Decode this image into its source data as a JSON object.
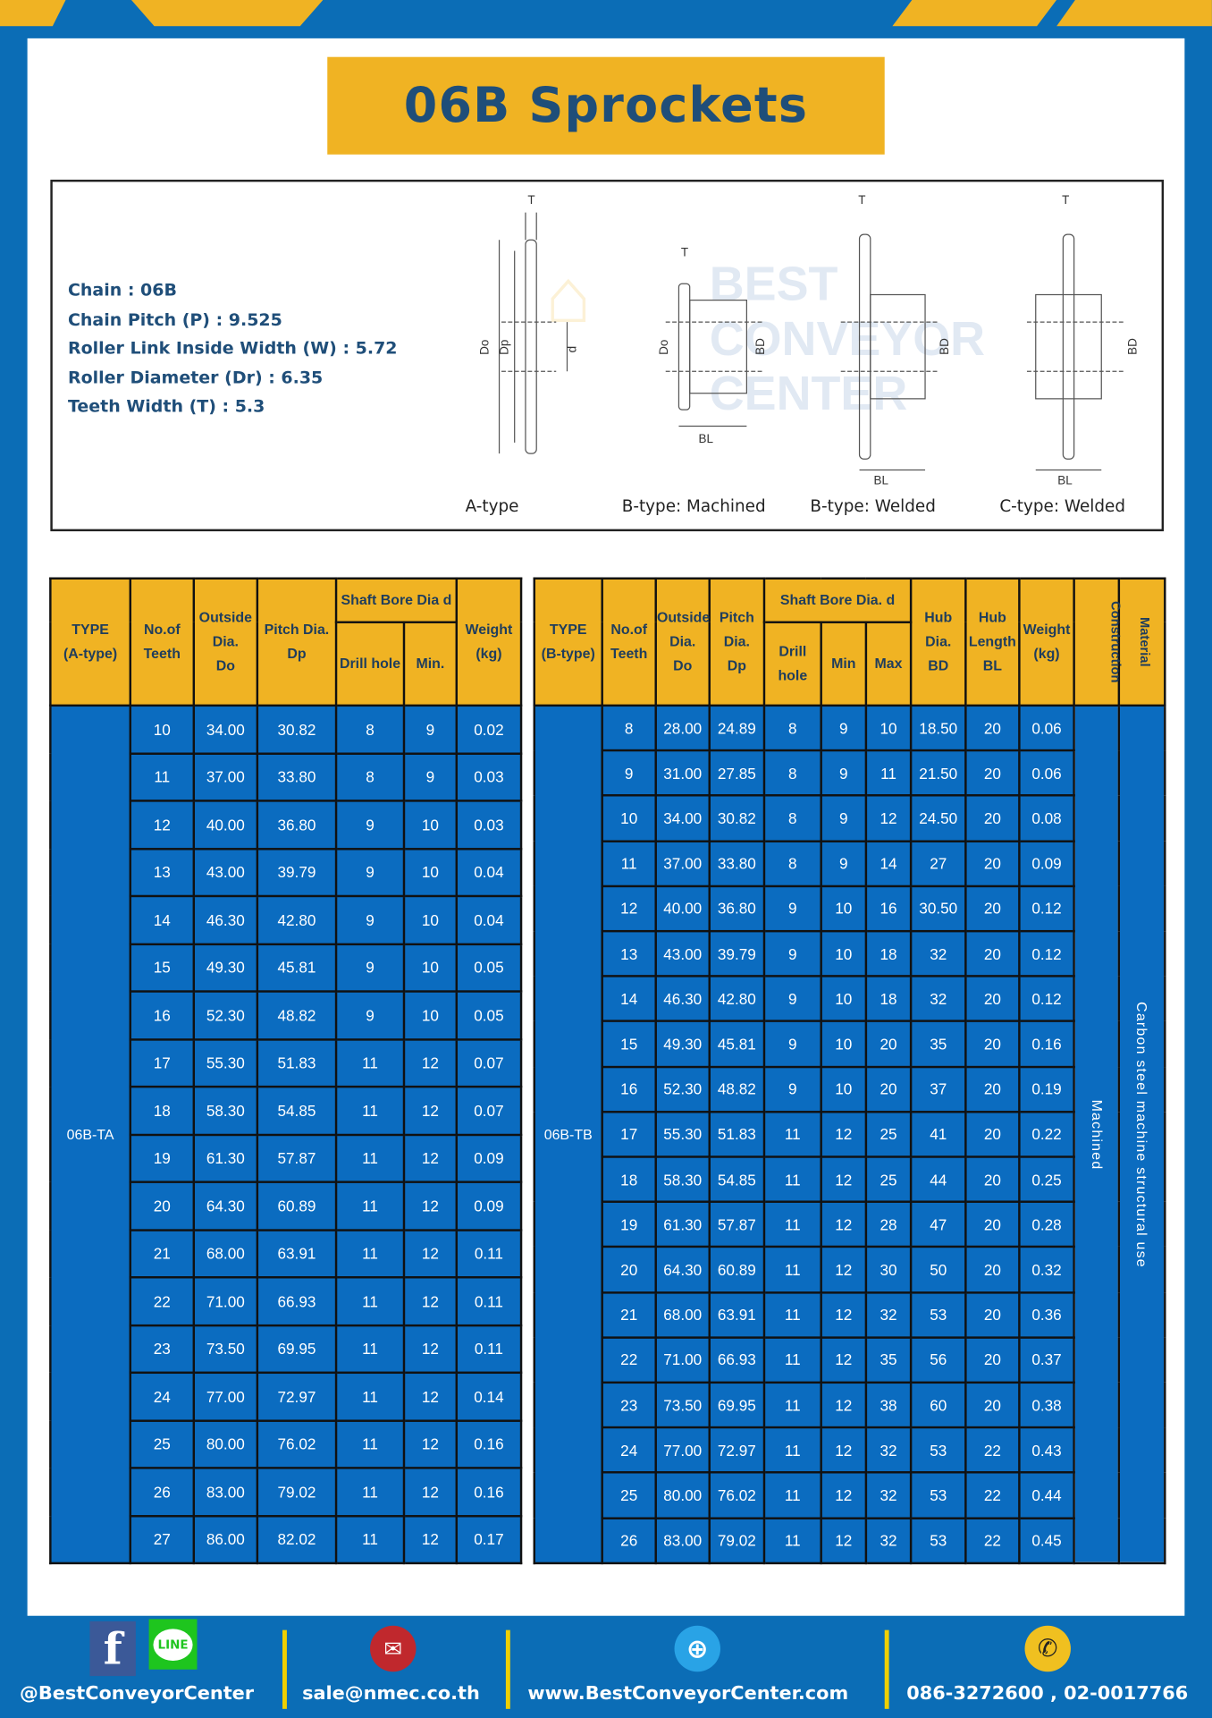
{
  "title": "06B Sprockets",
  "colors": {
    "brand_blue": "#0b6db6",
    "accent_yellow": "#f0b323",
    "title_navy": "#1f4e79",
    "table_cell": "#0b6cc0"
  },
  "specs": [
    "Chain  : 06B",
    "Chain Pitch (P)  :  9.525",
    "Roller Link Inside Width (W)  :  5.72",
    "Roller Diameter (Dr) : 6.35",
    "Teeth Width (T)  :  5.3"
  ],
  "diagram": {
    "captions": [
      "A-type",
      "B-type: Machined",
      "B-type: Welded",
      "C-type: Welded"
    ],
    "labels": {
      "t": "T",
      "do": "Do",
      "dp": "Dp",
      "d": "d",
      "bd": "BD",
      "bl": "BL"
    },
    "watermark": "BEST CONVEYOR CENTER"
  },
  "table_a": {
    "headers": {
      "type": [
        "TYPE",
        "(A-type)"
      ],
      "teeth": [
        "No.of",
        "Teeth"
      ],
      "do": [
        "Outside",
        "Dia.",
        "Do"
      ],
      "dp": [
        "Pitch Dia.",
        "Dp"
      ],
      "bore": "Shaft Bore Dia d",
      "drill": "Drill hole",
      "min": "Min.",
      "weight": [
        "Weight",
        "(kg)"
      ]
    },
    "type_value": "06B-TA",
    "rows": [
      [
        "10",
        "34.00",
        "30.82",
        "8",
        "9",
        "0.02"
      ],
      [
        "11",
        "37.00",
        "33.80",
        "8",
        "9",
        "0.03"
      ],
      [
        "12",
        "40.00",
        "36.80",
        "9",
        "10",
        "0.03"
      ],
      [
        "13",
        "43.00",
        "39.79",
        "9",
        "10",
        "0.04"
      ],
      [
        "14",
        "46.30",
        "42.80",
        "9",
        "10",
        "0.04"
      ],
      [
        "15",
        "49.30",
        "45.81",
        "9",
        "10",
        "0.05"
      ],
      [
        "16",
        "52.30",
        "48.82",
        "9",
        "10",
        "0.05"
      ],
      [
        "17",
        "55.30",
        "51.83",
        "11",
        "12",
        "0.07"
      ],
      [
        "18",
        "58.30",
        "54.85",
        "11",
        "12",
        "0.07"
      ],
      [
        "19",
        "61.30",
        "57.87",
        "11",
        "12",
        "0.09"
      ],
      [
        "20",
        "64.30",
        "60.89",
        "11",
        "12",
        "0.09"
      ],
      [
        "21",
        "68.00",
        "63.91",
        "11",
        "12",
        "0.11"
      ],
      [
        "22",
        "71.00",
        "66.93",
        "11",
        "12",
        "0.11"
      ],
      [
        "23",
        "73.50",
        "69.95",
        "11",
        "12",
        "0.11"
      ],
      [
        "24",
        "77.00",
        "72.97",
        "11",
        "12",
        "0.14"
      ],
      [
        "25",
        "80.00",
        "76.02",
        "11",
        "12",
        "0.16"
      ],
      [
        "26",
        "83.00",
        "79.02",
        "11",
        "12",
        "0.16"
      ],
      [
        "27",
        "86.00",
        "82.02",
        "11",
        "12",
        "0.17"
      ]
    ]
  },
  "table_b": {
    "headers": {
      "type": [
        "TYPE",
        "(B-type)"
      ],
      "teeth": [
        "No.of",
        "Teeth"
      ],
      "do": [
        "Outside",
        "Dia.",
        "Do"
      ],
      "dp": [
        "Pitch",
        "Dia.",
        "Dp"
      ],
      "bore": "Shaft Bore Dia.  d",
      "drill": "Drill hole",
      "min": "Min",
      "max": "Max",
      "bd": [
        "Hub",
        "Dia.",
        "BD"
      ],
      "bl": [
        "Hub",
        "Length",
        "BL"
      ],
      "weight": [
        "Weight",
        "(kg)"
      ],
      "construction": "Construction",
      "material": "Material"
    },
    "type_value": "06B-TB",
    "construction_value": "Machined",
    "material_value": "Carbon steel machine structural use",
    "rows": [
      [
        "8",
        "28.00",
        "24.89",
        "8",
        "9",
        "10",
        "18.50",
        "20",
        "0.06"
      ],
      [
        "9",
        "31.00",
        "27.85",
        "8",
        "9",
        "11",
        "21.50",
        "20",
        "0.06"
      ],
      [
        "10",
        "34.00",
        "30.82",
        "8",
        "9",
        "12",
        "24.50",
        "20",
        "0.08"
      ],
      [
        "11",
        "37.00",
        "33.80",
        "8",
        "9",
        "14",
        "27",
        "20",
        "0.09"
      ],
      [
        "12",
        "40.00",
        "36.80",
        "9",
        "10",
        "16",
        "30.50",
        "20",
        "0.12"
      ],
      [
        "13",
        "43.00",
        "39.79",
        "9",
        "10",
        "18",
        "32",
        "20",
        "0.12"
      ],
      [
        "14",
        "46.30",
        "42.80",
        "9",
        "10",
        "18",
        "32",
        "20",
        "0.12"
      ],
      [
        "15",
        "49.30",
        "45.81",
        "9",
        "10",
        "20",
        "35",
        "20",
        "0.16"
      ],
      [
        "16",
        "52.30",
        "48.82",
        "9",
        "10",
        "20",
        "37",
        "20",
        "0.19"
      ],
      [
        "17",
        "55.30",
        "51.83",
        "11",
        "12",
        "25",
        "41",
        "20",
        "0.22"
      ],
      [
        "18",
        "58.30",
        "54.85",
        "11",
        "12",
        "25",
        "44",
        "20",
        "0.25"
      ],
      [
        "19",
        "61.30",
        "57.87",
        "11",
        "12",
        "28",
        "47",
        "20",
        "0.28"
      ],
      [
        "20",
        "64.30",
        "60.89",
        "11",
        "12",
        "30",
        "50",
        "20",
        "0.32"
      ],
      [
        "21",
        "68.00",
        "63.91",
        "11",
        "12",
        "32",
        "53",
        "20",
        "0.36"
      ],
      [
        "22",
        "71.00",
        "66.93",
        "11",
        "12",
        "35",
        "56",
        "20",
        "0.37"
      ],
      [
        "23",
        "73.50",
        "69.95",
        "11",
        "12",
        "38",
        "60",
        "20",
        "0.38"
      ],
      [
        "24",
        "77.00",
        "72.97",
        "11",
        "12",
        "32",
        "53",
        "22",
        "0.43"
      ],
      [
        "25",
        "80.00",
        "76.02",
        "11",
        "12",
        "32",
        "53",
        "22",
        "0.44"
      ],
      [
        "26",
        "83.00",
        "79.02",
        "11",
        "12",
        "32",
        "53",
        "22",
        "0.45"
      ]
    ]
  },
  "footer": {
    "social": "@BestConveyorCenter",
    "line_label": "LINE",
    "email": "sale@nmec.co.th",
    "website": "www.BestConveyorCenter.com",
    "phone": "086-3272600 , 02-0017766",
    "icons": [
      "facebook-icon",
      "line-icon",
      "email-icon",
      "globe-icon",
      "phone-icon"
    ]
  }
}
